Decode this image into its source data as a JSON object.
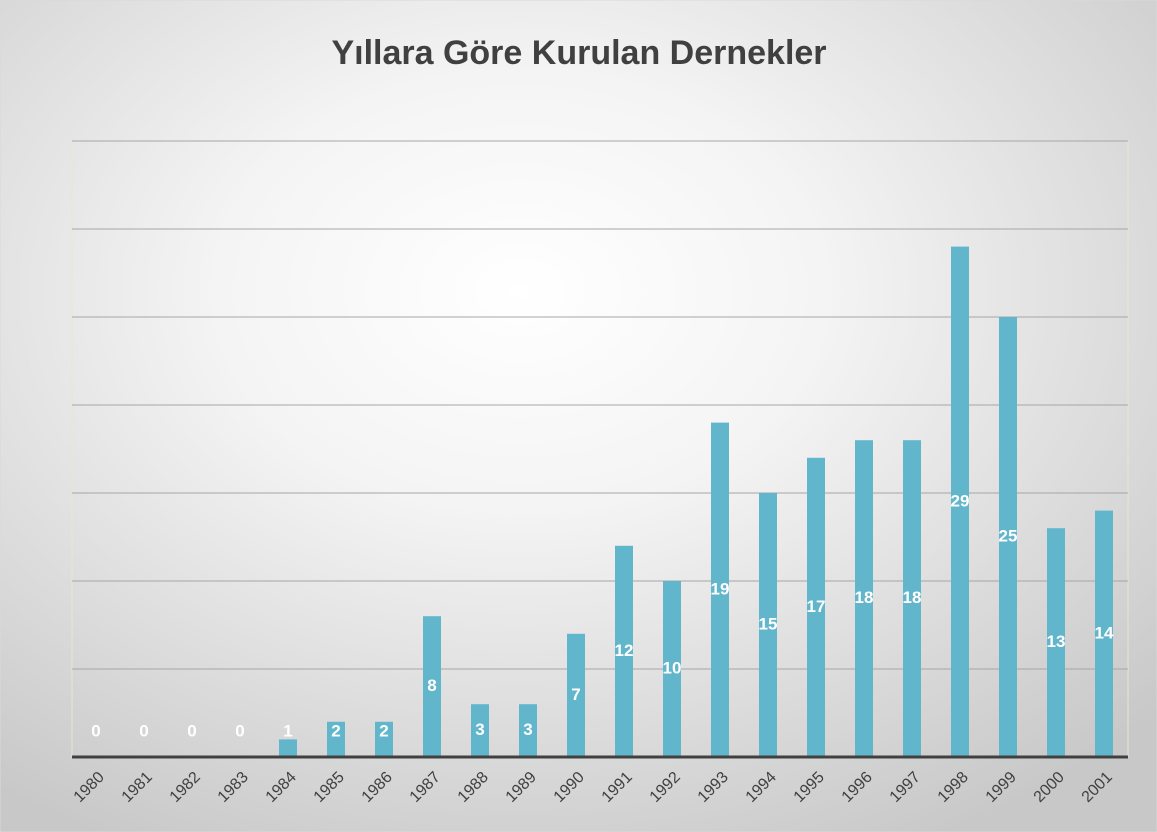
{
  "chart_data": {
    "type": "bar",
    "title": "Yıllara Göre Kurulan Dernekler",
    "categories": [
      "1980",
      "1981",
      "1982",
      "1983",
      "1984",
      "1985",
      "1986",
      "1987",
      "1988",
      "1989",
      "1990",
      "1991",
      "1992",
      "1993",
      "1994",
      "1995",
      "1996",
      "1997",
      "1998",
      "1999",
      "2000",
      "2001"
    ],
    "values": [
      0,
      0,
      0,
      0,
      1,
      2,
      2,
      8,
      3,
      3,
      7,
      12,
      10,
      19,
      15,
      17,
      18,
      18,
      29,
      25,
      13,
      14
    ],
    "color": "#62b6cc",
    "ylim": [
      0,
      35
    ],
    "yticks": [
      0,
      5,
      10,
      15,
      20,
      25,
      30,
      35
    ],
    "grid": true
  }
}
